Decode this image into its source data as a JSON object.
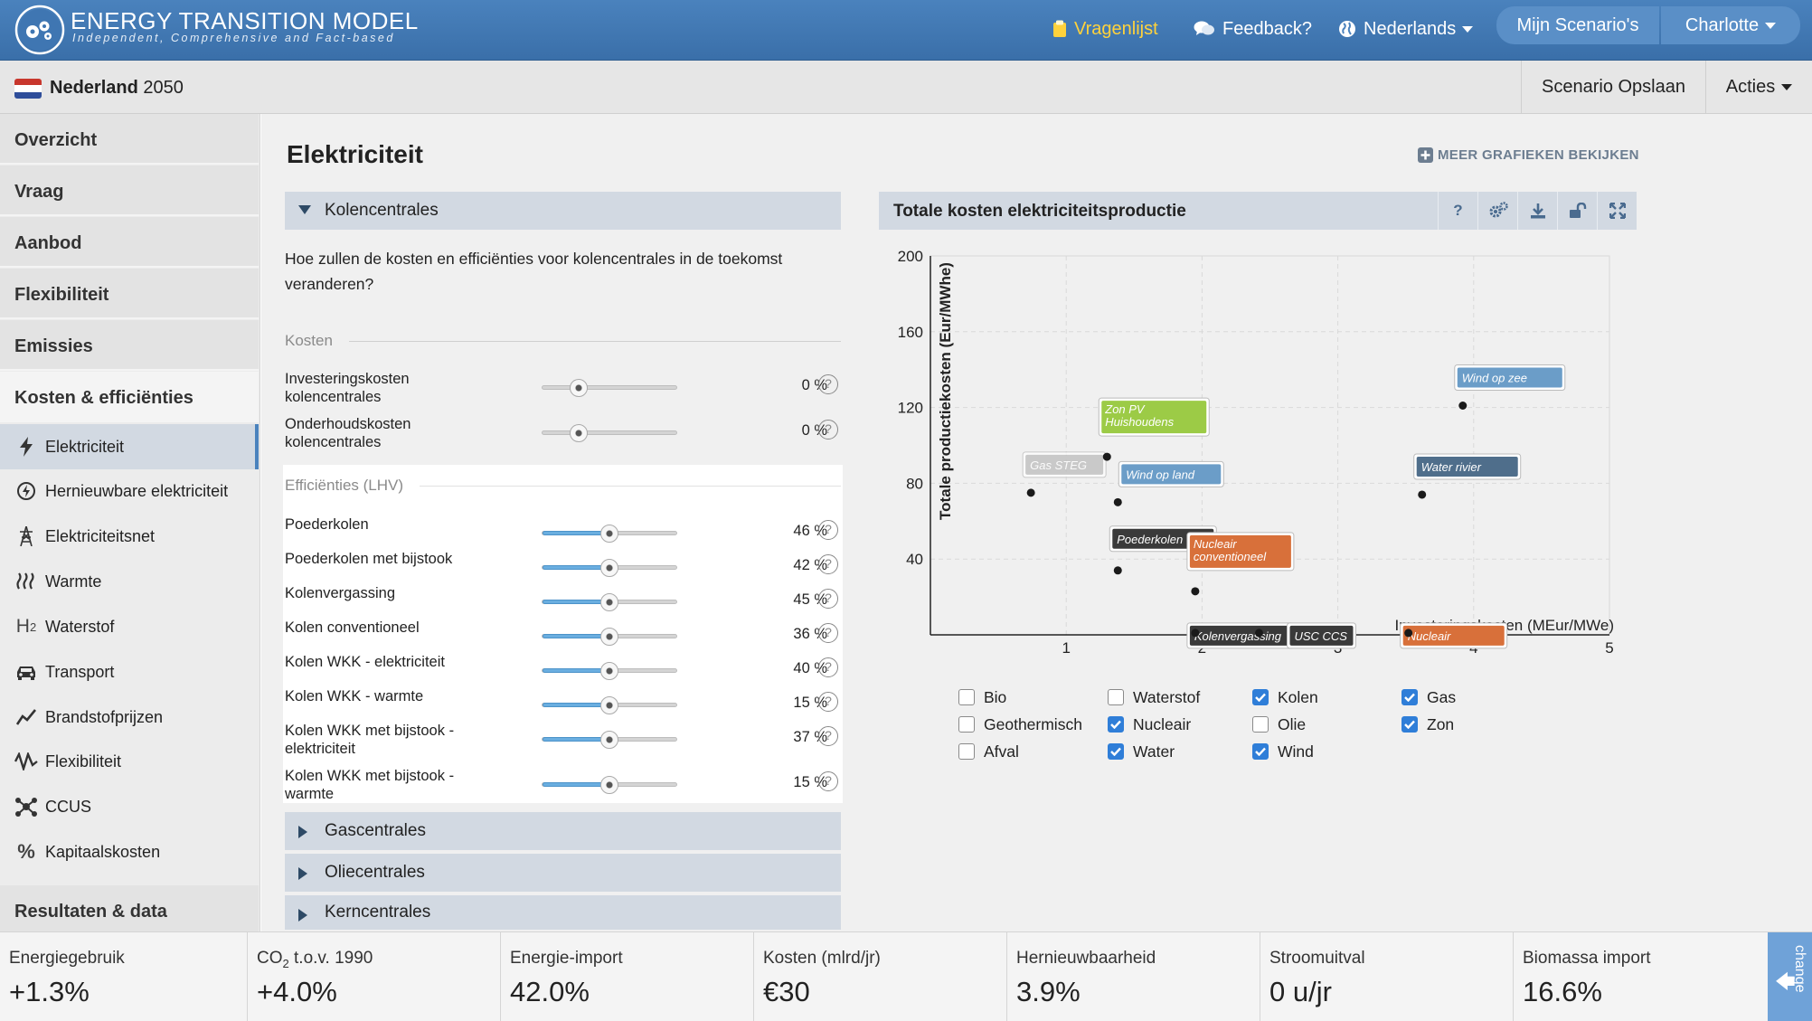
{
  "header": {
    "brand_title": "ENERGY TRANSITION MODEL",
    "brand_subtitle": "Independent, Comprehensive and Fact-based",
    "nav": {
      "vragenlijst": "Vragenlijst",
      "feedback": "Feedback?",
      "language": "Nederlands",
      "my_scenarios": "Mijn Scenario's",
      "user": "Charlotte"
    },
    "vragenlijst_color": "#ffd23c"
  },
  "scenario_bar": {
    "country": "Nederland",
    "year": "2050",
    "save": "Scenario Opslaan",
    "actions": "Acties"
  },
  "sidebar": {
    "main": [
      "Overzicht",
      "Vraag",
      "Aanbod",
      "Flexibiliteit",
      "Emissies",
      "Kosten & efficiënties"
    ],
    "sub": [
      {
        "label": "Elektriciteit",
        "icon": "lightning-icon"
      },
      {
        "label": "Hernieuwbare elektriciteit",
        "icon": "renewable-icon"
      },
      {
        "label": "Elektriciteitsnet",
        "icon": "pylon-icon"
      },
      {
        "label": "Warmte",
        "icon": "heat-icon"
      },
      {
        "label": "Waterstof",
        "icon": "hydrogen-icon",
        "glyph": "H",
        "glyph_sub": "2"
      },
      {
        "label": "Transport",
        "icon": "car-icon"
      },
      {
        "label": "Brandstofprijzen",
        "icon": "trend-icon"
      },
      {
        "label": "Flexibiliteit",
        "icon": "wave-icon"
      },
      {
        "label": "CCUS",
        "icon": "molecule-icon"
      },
      {
        "label": "Kapitaalskosten",
        "icon": "percent-icon",
        "glyph": "%"
      }
    ],
    "results": "Resultaten & data"
  },
  "main": {
    "title": "Elektriciteit",
    "more_charts": "MEER GRAFIEKEN BEKIJKEN",
    "open_section": "Kolencentrales",
    "question": "Hoe zullen de kosten en efficiënties voor kolencentrales in de toekomst veranderen?",
    "costs_heading": "Kosten",
    "cost_sliders": [
      {
        "label": "Investeringskosten kolencentrales",
        "value": "0 %",
        "fraction": 0.27
      },
      {
        "label": "Onderhoudskosten kolencentrales",
        "value": "0 %",
        "fraction": 0.27
      }
    ],
    "eff_heading": "Efficiënties (LHV)",
    "eff_sliders": [
      {
        "label": "Poederkolen",
        "value": "46 %",
        "fraction": 0.5
      },
      {
        "label": "Poederkolen met bijstook",
        "value": "42 %",
        "fraction": 0.5
      },
      {
        "label": "Kolenvergassing",
        "value": "45 %",
        "fraction": 0.5
      },
      {
        "label": "Kolen conventioneel",
        "value": "36 %",
        "fraction": 0.5
      },
      {
        "label": "Kolen WKK - elektriciteit",
        "value": "40 %",
        "fraction": 0.5
      },
      {
        "label": "Kolen WKK - warmte",
        "value": "15 %",
        "fraction": 0.5
      },
      {
        "label": "Kolen WKK met bijstook - elektriciteit",
        "value": "37 %",
        "fraction": 0.5
      },
      {
        "label": "Kolen WKK met bijstook - warmte",
        "value": "15 %",
        "fraction": 0.5
      }
    ],
    "collapsed_sections": [
      "Gascentrales",
      "Oliecentrales",
      "Kerncentrales"
    ]
  },
  "chart": {
    "title": "Totale kosten elektriciteitsproductie",
    "buttons": {
      "help": "?"
    },
    "legend": [
      {
        "label": "Bio",
        "checked": false
      },
      {
        "label": "Geothermisch",
        "checked": false
      },
      {
        "label": "Afval",
        "checked": false
      },
      {
        "label": "Waterstof",
        "checked": false
      },
      {
        "label": "Nucleair",
        "checked": true
      },
      {
        "label": "Water",
        "checked": true
      },
      {
        "label": "Kolen",
        "checked": true
      },
      {
        "label": "Olie",
        "checked": false
      },
      {
        "label": "Wind",
        "checked": true
      },
      {
        "label": "Gas",
        "checked": true
      },
      {
        "label": "Zon",
        "checked": true
      }
    ]
  },
  "chart_data": {
    "type": "scatter",
    "xlabel": "Investeringskosten (MEur/MWe)",
    "ylabel": "Totale productiekosten (Eur/MWhe)",
    "xlim": [
      0,
      5
    ],
    "ylim": [
      0,
      200
    ],
    "xticks": [
      1,
      2,
      3,
      4,
      5
    ],
    "yticks": [
      40,
      80,
      120,
      160,
      200
    ],
    "grid": true,
    "points": [
      {
        "name": "Gas STEG",
        "x": 0.74,
        "y": 75,
        "color": "#bdbdbd",
        "faded": true
      },
      {
        "name": "Zon PV Huishoudens",
        "x": 1.3,
        "y": 94,
        "color": "#9ccb46"
      },
      {
        "name": "Wind op land",
        "x": 1.38,
        "y": 70,
        "color": "#6b9dc8"
      },
      {
        "name": "Poederkolen",
        "x": 1.38,
        "y": 34,
        "color": "#3a3a3a"
      },
      {
        "name": "Nucleair conventioneel",
        "x": 1.95,
        "y": 23,
        "color": "#d8703a"
      },
      {
        "name": "Kolenvergassing",
        "x": 1.95,
        "y": 1,
        "color": "#3a3a3a"
      },
      {
        "name": "USC CCS",
        "x": 2.42,
        "y": 1,
        "color": "#3a3a3a"
      },
      {
        "name": "Water rivier",
        "x": 3.62,
        "y": 74,
        "color": "#4f6e8b"
      },
      {
        "name": "Wind op zee",
        "x": 3.92,
        "y": 121,
        "color": "#6b9dc8"
      },
      {
        "name": "Nucleair",
        "x": 3.52,
        "y": 1,
        "color": "#d8703a"
      }
    ]
  },
  "kpis": [
    {
      "label": "Energiegebruik",
      "value": "+1.3%"
    },
    {
      "label_main": "CO",
      "label_sub": "2",
      "label_rest": " t.o.v. 1990",
      "value": "+4.0%"
    },
    {
      "label": "Energie-import",
      "value": "42.0%"
    },
    {
      "label": "Kosten (mlrd/jr)",
      "value": "€30"
    },
    {
      "label": "Hernieuwbaarheid",
      "value": "3.9%"
    },
    {
      "label": "Stroomuitval",
      "value": "0 u/jr"
    },
    {
      "label": "Biomassa import",
      "value": "16.6%"
    }
  ],
  "change_tab": "change"
}
